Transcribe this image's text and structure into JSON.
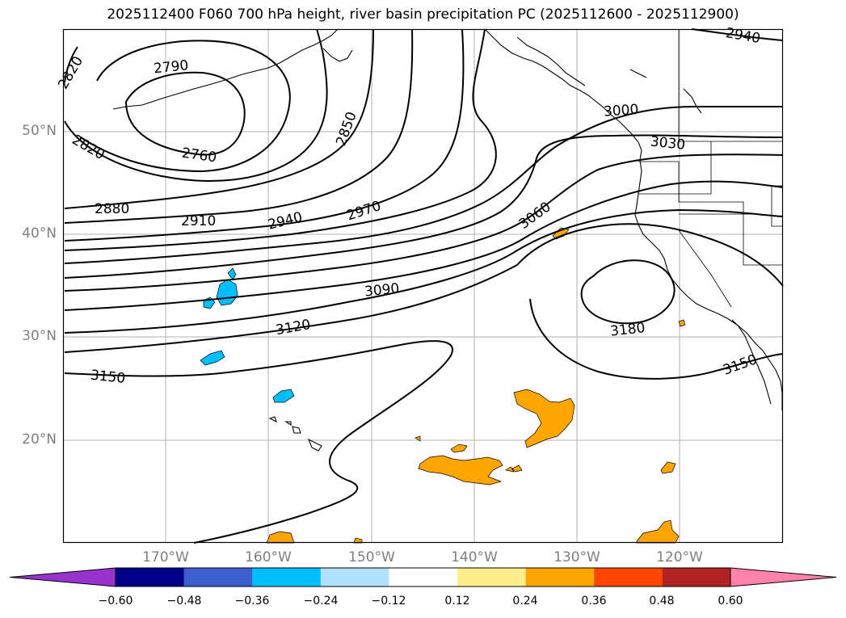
{
  "title": "2025112400 F060 700 hPa height, river basin precipitation PC (2025112600 - 2025112900)",
  "map": {
    "lat_labels": [
      {
        "text": "50°N",
        "lat": 50
      },
      {
        "text": "40°N",
        "lat": 40
      },
      {
        "text": "30°N",
        "lat": 30
      },
      {
        "text": "20°N",
        "lat": 20
      }
    ],
    "lon_labels": [
      {
        "text": "170°W",
        "lon": -170
      },
      {
        "text": "160°W",
        "lon": -160
      },
      {
        "text": "150°W",
        "lon": -150
      },
      {
        "text": "140°W",
        "lon": -140
      },
      {
        "text": "130°W",
        "lon": -130
      },
      {
        "text": "120°W",
        "lon": -120
      }
    ],
    "contour_labels": [
      "2820",
      "2790",
      "2760",
      "2850",
      "2820",
      "2880",
      "2910",
      "2940",
      "2970",
      "3000",
      "3030",
      "3060",
      "3090",
      "3120",
      "3150",
      "3180",
      "3150",
      "2940"
    ],
    "fill_positive": "#ffa500",
    "fill_negative": "#00bfff"
  },
  "colorbar": {
    "ticks": [
      "−0.60",
      "−0.48",
      "−0.36",
      "−0.24",
      "−0.12",
      "0.12",
      "0.24",
      "0.36",
      "0.48",
      "0.60"
    ],
    "colors": [
      "#9932cc",
      "#00008b",
      "#3a5fcd",
      "#00bfff",
      "#b0e2ff",
      "#ffffff",
      "#ffec8b",
      "#ffa500",
      "#ff4500",
      "#b22222",
      "#ff82ab",
      "#ff82ab"
    ]
  }
}
